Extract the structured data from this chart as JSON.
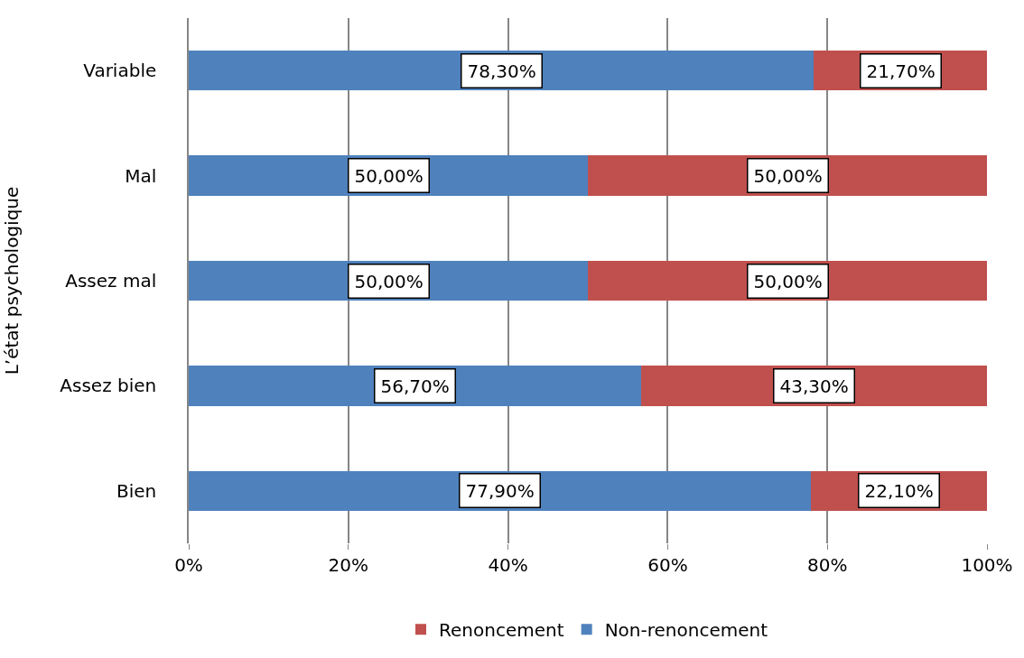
{
  "chart_data": {
    "type": "bar",
    "orientation": "horizontal",
    "stacked": true,
    "ylabel": "L’état psychologique",
    "categories": [
      "Variable",
      "Mal",
      "Assez mal",
      "Assez bien",
      "Bien"
    ],
    "series": [
      {
        "name": "Non-renoncement",
        "color": "#4f81bd",
        "values": [
          78.3,
          50,
          50,
          56.7,
          77.9
        ],
        "value_labels": [
          "78,30%",
          "50,00%",
          "50,00%",
          "56,70%",
          "77,90%"
        ]
      },
      {
        "name": "Renoncement",
        "color": "#c0504d",
        "values": [
          21.7,
          50,
          50,
          43.3,
          22.1
        ],
        "value_labels": [
          "21,70%",
          "50,00%",
          "50,00%",
          "43,30%",
          "22,10%"
        ]
      }
    ],
    "xlim": [
      0,
      100
    ],
    "xticks": [
      {
        "value": 0,
        "label": "0%"
      },
      {
        "value": 20,
        "label": "20%"
      },
      {
        "value": 40,
        "label": "40%"
      },
      {
        "value": 60,
        "label": "60%"
      },
      {
        "value": 80,
        "label": "80%"
      },
      {
        "value": 100,
        "label": "100%"
      }
    ],
    "grid": "x",
    "legend": "bottom"
  }
}
